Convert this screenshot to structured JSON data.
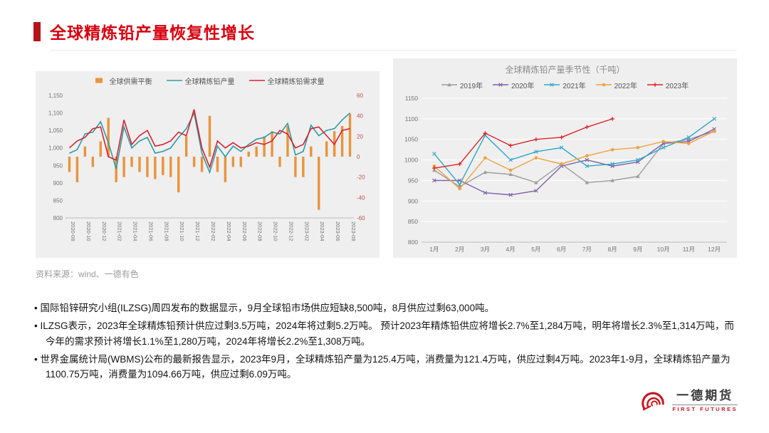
{
  "header": {
    "title": "全球精炼铅产量恢复性增长"
  },
  "source": "资料来源：wind、一德有色",
  "bullets": [
    "国际铅锌研究小组(ILZSG)周四发布的数据显示，9月全球铅市场供应短缺8,500吨，8月供应过剩63,000吨。",
    "ILZSG表示，2023年全球精炼铅预计供应过剩3.5万吨，2024年将过剩5.2万吨。 预计2023年精炼铅供应将增长2.7%至1,284万吨，明年将增长2.3%至1,314万吨，而今年的需求预计将增长1.1%至1,280万吨，2024年将增长2.2%至1,308万吨。",
    "世界金属统计局(WBMS)公布的最新报告显示，2023年9月，全球精炼铅产量为125.4万吨，消费量为121.4万吨，供应过剩4万吨。2023年1-9月，全球精炼铅产量为1100.75万吨，消费量为1094.66万吨，供应过剩6.09万吨。",
    ""
  ],
  "logo": {
    "name_cn": "一德期货",
    "name_en": "FIRST FUTURES"
  },
  "icons": {
    "logo": "red-spiral-shell-icon"
  },
  "colors": {
    "accent_red": "#D7000F",
    "panel_bg": "#EFEFF0",
    "axis_text": "#737373",
    "right_axis_text": "#C0504D"
  },
  "chart_data": [
    {
      "type": "bar",
      "subtype": "combo_bar_line",
      "title": "",
      "categories": [
        "2020-08",
        "2020-09",
        "2020-10",
        "2020-11",
        "2020-12",
        "2021-01",
        "2021-02",
        "2021-03",
        "2021-04",
        "2021-05",
        "2021-06",
        "2021-07",
        "2021-08",
        "2021-09",
        "2021-10",
        "2021-11",
        "2021-12",
        "2022-01",
        "2022-02",
        "2022-03",
        "2022-04",
        "2022-05",
        "2022-06",
        "2022-07",
        "2022-08",
        "2022-09",
        "2022-10",
        "2022-11",
        "2022-12",
        "2023-01",
        "2023-02",
        "2023-03",
        "2023-04",
        "2023-05",
        "2023-06",
        "2023-07",
        "2023-08"
      ],
      "left_axis": {
        "min": 800,
        "max": 1150,
        "step": 50
      },
      "right_axis": {
        "min": -60,
        "max": 60,
        "step": 20
      },
      "grid": false,
      "legend_position": "top",
      "series": [
        {
          "name": "全球供需平衡",
          "type": "bar",
          "axis": "right",
          "color": "#E8943A",
          "values": [
            -15,
            -25,
            10,
            -10,
            15,
            38,
            -25,
            -20,
            -10,
            -15,
            -20,
            -22,
            -18,
            -20,
            -35,
            20,
            -10,
            -15,
            40,
            -15,
            -25,
            -10,
            -10,
            5,
            10,
            20,
            25,
            -10,
            30,
            -20,
            -20,
            10,
            -52,
            15,
            25,
            30,
            42
          ]
        },
        {
          "name": "全球精炼铅产量",
          "type": "line",
          "axis": "left",
          "color": "#2E9BA6",
          "values": [
            985,
            995,
            1040,
            1045,
            1075,
            1015,
            940,
            1060,
            1000,
            1020,
            1030,
            985,
            990,
            1000,
            1030,
            1055,
            1100,
            985,
            930,
            1005,
            975,
            1005,
            990,
            1010,
            1025,
            1030,
            1045,
            1040,
            1070,
            980,
            990,
            1065,
            1035,
            1050,
            1055,
            1080,
            1100
          ]
        },
        {
          "name": "全球精炼铅需求量",
          "type": "line",
          "axis": "left",
          "color": "#D9232E",
          "values": [
            1000,
            1020,
            1030,
            1055,
            1060,
            975,
            965,
            1080,
            1010,
            1035,
            1050,
            1005,
            1010,
            1020,
            1045,
            1035,
            1110,
            1000,
            945,
            1020,
            1000,
            1015,
            1000,
            1005,
            1015,
            1010,
            1020,
            1050,
            1040,
            1000,
            1010,
            1055,
            1060,
            1035,
            1010,
            1050,
            1055
          ]
        }
      ]
    },
    {
      "type": "line",
      "title": "全球精炼铅产量季节性（千吨）",
      "categories": [
        "1月",
        "2月",
        "3月",
        "4月",
        "5月",
        "6月",
        "7月",
        "8月",
        "9月",
        "10月",
        "11月",
        "12月"
      ],
      "y_axis": {
        "min": 800,
        "max": 1150,
        "step": 50
      },
      "grid": true,
      "legend_position": "top",
      "series": [
        {
          "name": "2019年",
          "color": "#9C9C9C",
          "marker": "triangle",
          "values": [
            975,
            935,
            970,
            965,
            945,
            990,
            945,
            950,
            960,
            1040,
            1050,
            1070
          ]
        },
        {
          "name": "2020年",
          "color": "#7D5FA8",
          "marker": "x",
          "values": [
            950,
            950,
            920,
            915,
            925,
            985,
            1000,
            985,
            995,
            1040,
            1045,
            1075
          ]
        },
        {
          "name": "2021年",
          "color": "#2FA8C8",
          "marker": "x",
          "values": [
            1015,
            940,
            1060,
            1000,
            1020,
            1030,
            985,
            990,
            1000,
            1030,
            1055,
            1100
          ]
        },
        {
          "name": "2022年",
          "color": "#EFA23E",
          "marker": "circle",
          "values": [
            985,
            930,
            1005,
            975,
            1005,
            990,
            1010,
            1025,
            1030,
            1045,
            1040,
            1070
          ]
        },
        {
          "name": "2023年",
          "color": "#E02222",
          "marker": "plus",
          "values": [
            980,
            990,
            1065,
            1035,
            1050,
            1055,
            1080,
            1100
          ]
        }
      ]
    }
  ]
}
